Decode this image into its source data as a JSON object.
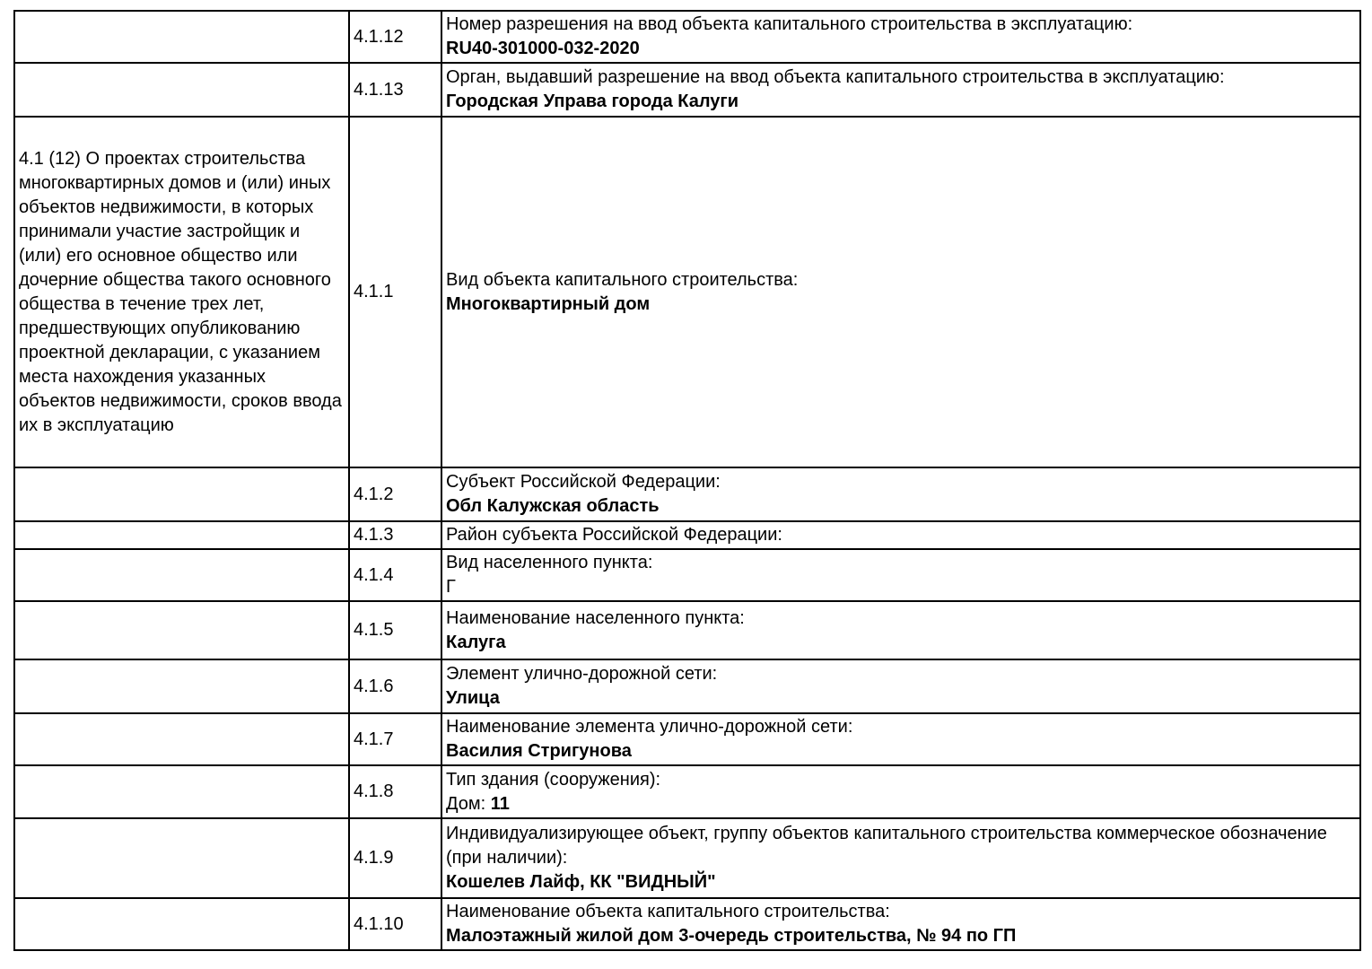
{
  "document": {
    "type": "project-declaration-table",
    "section_side_note": "4.1 (12) О проектах строительства многоквартирных домов и (или) иных объектов недвижимости, в которых принимали участие застройщик и (или) его основное общество или дочерние общества такого основного общества в течение трех лет, предшествующих опубликованию проектной декларации, с указанием места нахождения указанных объектов недвижимости, сроков ввода их в эксплуатацию",
    "colors": {
      "text": "#000000",
      "border": "#000000",
      "background": "#ffffff"
    },
    "table": {
      "rows": [
        {
          "num": "4.1.12",
          "side": "",
          "lines": [
            [
              {
                "t": "Номер разрешения на ввод объекта капитального строительства в эксплуатацию:",
                "b": false
              }
            ],
            [
              {
                "t": "RU40-301000-032-2020",
                "b": true
              }
            ]
          ]
        },
        {
          "num": "4.1.13",
          "side": "",
          "lines": [
            [
              {
                "t": "Орган, выдавший разрешение на ввод объекта капитального строительства в эксплуатацию:",
                "b": false
              }
            ],
            [
              {
                "t": "Городская Управа города Калуги",
                "b": true
              }
            ]
          ]
        },
        {
          "num": "4.1.1",
          "side": "4.1 (12) О проектах строительства многоквартирных домов и (или) иных объектов недвижимости, в которых принимали участие застройщик и (или) его основное общество или дочерние общества такого основного общества в течение трех лет, предшествующих опубликованию проектной декларации, с указанием места нахождения указанных объектов недвижимости, сроков ввода их в эксплуатацию",
          "lines": [
            [
              {
                "t": "Вид объекта капитального строительства:",
                "b": false
              }
            ],
            [
              {
                "t": "Многоквартирный дом",
                "b": true
              }
            ]
          ]
        },
        {
          "num": "4.1.2",
          "side": "",
          "lines": [
            [
              {
                "t": "Субъект Российской Федерации:",
                "b": false
              }
            ],
            [
              {
                "t": "Обл Калужская область",
                "b": true
              }
            ]
          ]
        },
        {
          "num": "4.1.3",
          "side": "",
          "lines": [
            [
              {
                "t": "Район субъекта Российской Федерации:",
                "b": false
              }
            ]
          ]
        },
        {
          "num": "4.1.4",
          "side": "",
          "lines": [
            [
              {
                "t": "Вид населенного пункта:",
                "b": false
              }
            ],
            [
              {
                "t": "Г",
                "b": false
              }
            ]
          ]
        },
        {
          "num": "4.1.5",
          "side": "",
          "lines": [
            [
              {
                "t": "Наименование населенного пункта:",
                "b": false
              }
            ],
            [
              {
                "t": "Калуга",
                "b": true
              }
            ]
          ]
        },
        {
          "num": "4.1.6",
          "side": "",
          "lines": [
            [
              {
                "t": "Элемент улично-дорожной сети:",
                "b": false
              }
            ],
            [
              {
                "t": "Улица",
                "b": true
              }
            ]
          ]
        },
        {
          "num": "4.1.7",
          "side": "",
          "lines": [
            [
              {
                "t": "Наименование элемента улично-дорожной сети:",
                "b": false
              }
            ],
            [
              {
                "t": "Василия Стригунова",
                "b": true
              }
            ]
          ]
        },
        {
          "num": "4.1.8",
          "side": "",
          "lines": [
            [
              {
                "t": "Тип здания (сооружения):",
                "b": false
              }
            ],
            [
              {
                "t": "Дом: ",
                "b": false
              },
              {
                "t": "11",
                "b": true
              }
            ]
          ]
        },
        {
          "num": "4.1.9",
          "side": "",
          "lines": [
            [
              {
                "t": "Индивидуализирующее объект, группу объектов капитального строительства коммерческое обозначение (при наличии):",
                "b": false
              }
            ],
            [
              {
                "t": "Кошелев Лайф, КК \"ВИДНЫЙ\"",
                "b": true
              }
            ]
          ]
        },
        {
          "num": "4.1.10",
          "side": "",
          "lines": [
            [
              {
                "t": "Наименование объекта капитального строительства:",
                "b": false
              }
            ],
            [
              {
                "t": "Малоэтажный жилой дом 3-очередь строительства, № 94 по ГП",
                "b": true
              }
            ]
          ]
        }
      ]
    }
  }
}
